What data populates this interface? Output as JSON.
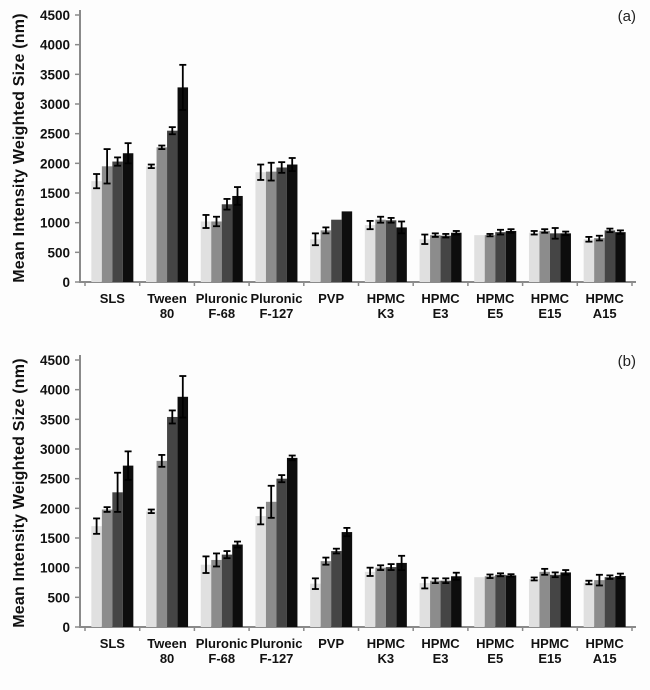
{
  "style": {
    "axis_color": "#8a8a8a",
    "error_bar_color": "#000000",
    "background_color": "#fdfdfd",
    "text_color": "#111111",
    "series_colors": [
      "#e0e0e0",
      "#8c8c8c",
      "#454545",
      "#0d0d0d"
    ]
  },
  "chart_data": [
    {
      "type": "bar",
      "panel_label": "(a)",
      "title": "",
      "xlabel": "",
      "ylabel": "Mean Intensity Weighted Size (nm)",
      "ylim": [
        0,
        4500
      ],
      "yticks": [
        0,
        500,
        1000,
        1500,
        2000,
        2500,
        3000,
        3500,
        4000,
        4500
      ],
      "grid": false,
      "legend": "none",
      "categories": [
        "SLS",
        "Tween 80",
        "Pluronic F-68",
        "Pluronic F-127",
        "PVP",
        "HPMC K3",
        "HPMC E3",
        "HPMC E5",
        "HPMC E15",
        "HPMC A15"
      ],
      "categories_lines": [
        [
          "SLS"
        ],
        [
          "Tween",
          "80"
        ],
        [
          "Pluronic",
          "F-68"
        ],
        [
          "Pluronic",
          "F-127"
        ],
        [
          "PVP"
        ],
        [
          "HPMC",
          "K3"
        ],
        [
          "HPMC",
          "E3"
        ],
        [
          "HPMC",
          "E5"
        ],
        [
          "HPMC",
          "E15"
        ],
        [
          "HPMC",
          "A15"
        ]
      ],
      "series": [
        {
          "name": "series-1",
          "color": "#e0e0e0",
          "values": [
            1700,
            1950,
            1020,
            1850,
            720,
            960,
            720,
            790,
            830,
            720
          ],
          "errors": [
            120,
            30,
            110,
            130,
            100,
            70,
            80,
            0,
            30,
            40
          ]
        },
        {
          "name": "series-2",
          "color": "#8c8c8c",
          "values": [
            1950,
            2270,
            1020,
            1860,
            870,
            1050,
            790,
            790,
            860,
            740
          ],
          "errors": [
            290,
            30,
            80,
            150,
            50,
            50,
            30,
            20,
            30,
            40
          ]
        },
        {
          "name": "series-3",
          "color": "#454545",
          "values": [
            2030,
            2550,
            1310,
            1930,
            1050,
            1040,
            780,
            840,
            820,
            870
          ],
          "errors": [
            70,
            60,
            90,
            90,
            0,
            40,
            30,
            40,
            90,
            30
          ]
        },
        {
          "name": "series-4",
          "color": "#0d0d0d",
          "values": [
            2170,
            3280,
            1450,
            1980,
            1190,
            920,
            830,
            860,
            820,
            840
          ],
          "errors": [
            170,
            380,
            150,
            110,
            0,
            100,
            30,
            30,
            30,
            30
          ]
        }
      ]
    },
    {
      "type": "bar",
      "panel_label": "(b)",
      "title": "",
      "xlabel": "",
      "ylabel": "Mean Intensity Weighted Size (nm)",
      "ylim": [
        0,
        4500
      ],
      "yticks": [
        0,
        500,
        1000,
        1500,
        2000,
        2500,
        3000,
        3500,
        4000,
        4500
      ],
      "grid": false,
      "legend": "none",
      "categories": [
        "SLS",
        "Tween 80",
        "Pluronic F-68",
        "Pluronic F-127",
        "PVP",
        "HPMC K3",
        "HPMC E3",
        "HPMC E5",
        "HPMC E15",
        "HPMC A15"
      ],
      "categories_lines": [
        [
          "SLS"
        ],
        [
          "Tween",
          "80"
        ],
        [
          "Pluronic",
          "F-68"
        ],
        [
          "Pluronic",
          "F-127"
        ],
        [
          "PVP"
        ],
        [
          "HPMC",
          "K3"
        ],
        [
          "HPMC",
          "E3"
        ],
        [
          "HPMC",
          "E5"
        ],
        [
          "HPMC",
          "E15"
        ],
        [
          "HPMC",
          "A15"
        ]
      ],
      "series": [
        {
          "name": "series-1",
          "color": "#e0e0e0",
          "values": [
            1700,
            1950,
            1050,
            1870,
            730,
            930,
            740,
            840,
            810,
            750
          ],
          "errors": [
            130,
            30,
            140,
            140,
            90,
            70,
            90,
            0,
            25,
            30
          ]
        },
        {
          "name": "series-2",
          "color": "#8c8c8c",
          "values": [
            1980,
            2800,
            1130,
            2110,
            1110,
            1000,
            780,
            855,
            930,
            790
          ],
          "errors": [
            40,
            100,
            110,
            270,
            60,
            40,
            40,
            30,
            50,
            90
          ]
        },
        {
          "name": "series-3",
          "color": "#454545",
          "values": [
            2270,
            3540,
            1220,
            2500,
            1280,
            1010,
            780,
            880,
            880,
            840
          ],
          "errors": [
            330,
            110,
            60,
            60,
            40,
            50,
            40,
            25,
            40,
            30
          ]
        },
        {
          "name": "series-4",
          "color": "#0d0d0d",
          "values": [
            2720,
            3880,
            1390,
            2850,
            1600,
            1080,
            855,
            870,
            920,
            860
          ],
          "errors": [
            240,
            350,
            50,
            40,
            70,
            120,
            60,
            20,
            40,
            40
          ]
        }
      ]
    }
  ]
}
